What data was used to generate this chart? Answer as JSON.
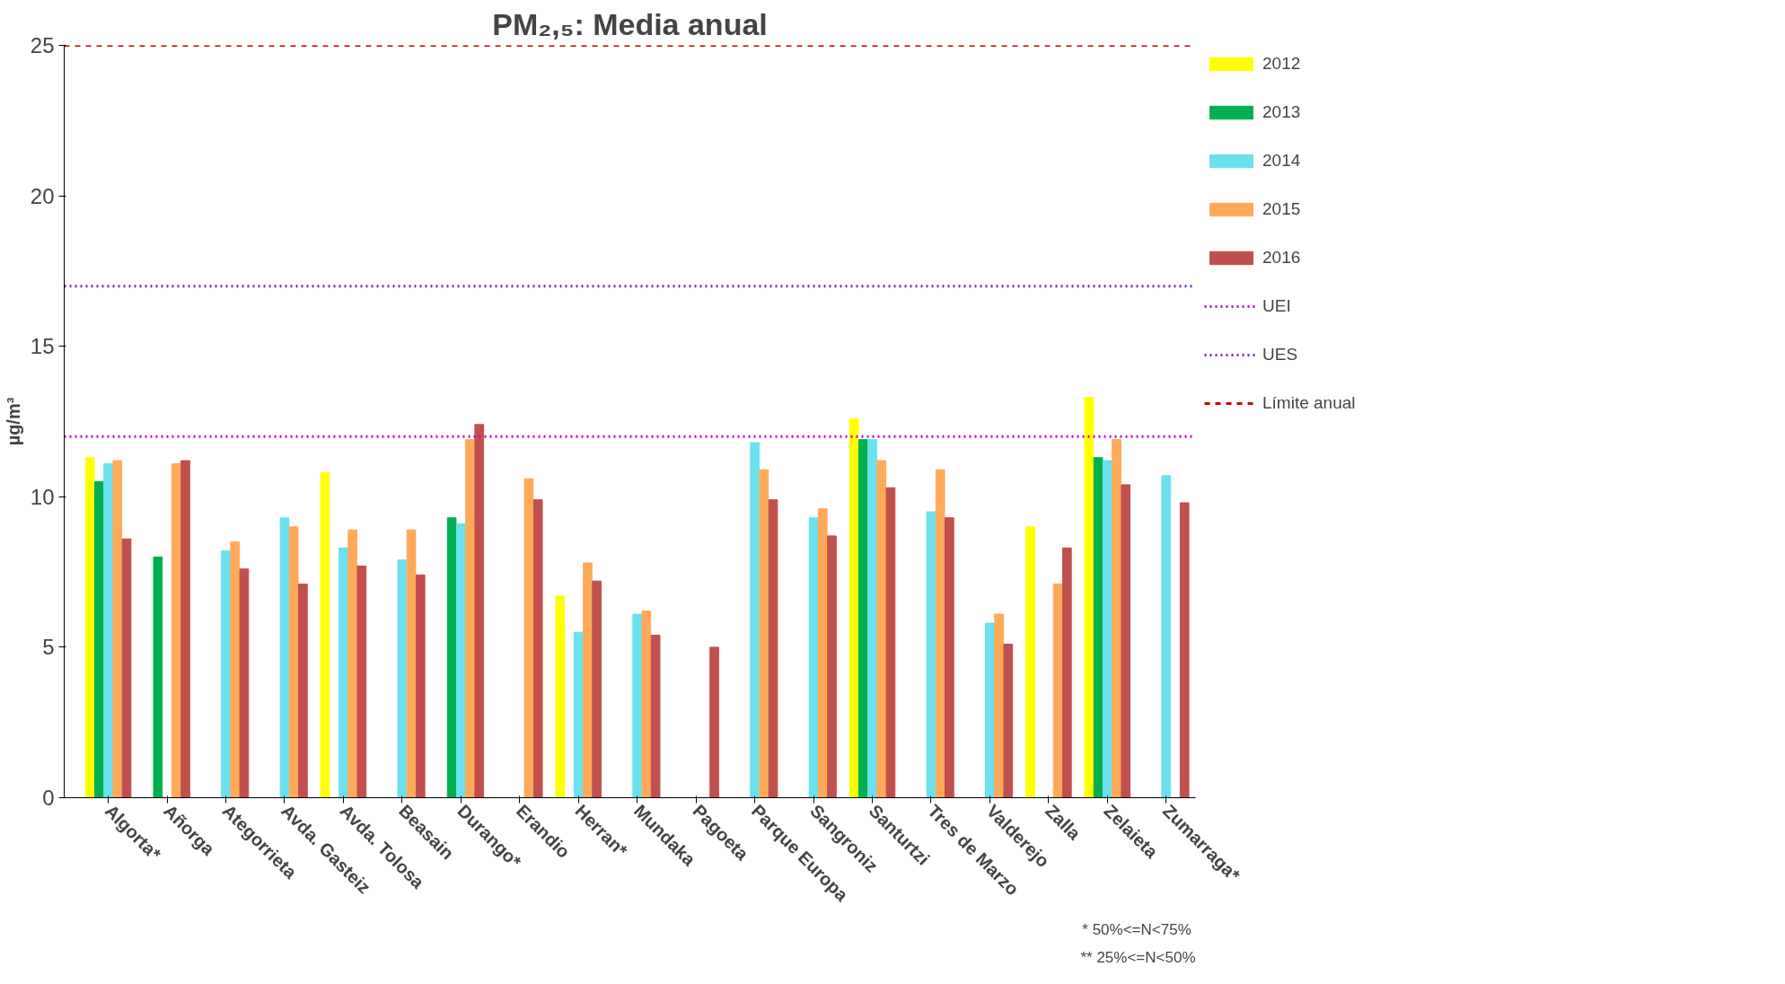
{
  "chart_data": {
    "type": "bar",
    "title": "PM₂,₅: Media anual",
    "ylabel": "µg/m³",
    "categories": [
      "Algorta*",
      "Añorga",
      "Ategorrieta",
      "Avda. Gasteiz",
      "Avda. Tolosa",
      "Beasain",
      "Durango*",
      "Erandio",
      "Herran*",
      "Mundaka",
      "Pagoeta",
      "Parque Europa",
      "Sangroniz",
      "Santurtzi",
      "Tres de Marzo",
      "Valderejo",
      "Zalla",
      "Zelaieta",
      "Zumarraga*"
    ],
    "series": [
      {
        "name": "2012",
        "color": "#ffff00",
        "values": [
          11.3,
          null,
          null,
          null,
          10.8,
          null,
          null,
          null,
          6.7,
          null,
          null,
          null,
          null,
          12.6,
          null,
          null,
          9.0,
          13.3,
          null
        ]
      },
      {
        "name": "2013",
        "color": "#00b050",
        "values": [
          10.5,
          8.0,
          null,
          null,
          null,
          null,
          9.3,
          null,
          null,
          null,
          null,
          null,
          null,
          11.9,
          null,
          null,
          null,
          11.3,
          null
        ]
      },
      {
        "name": "2014",
        "color": "#6ae1ec",
        "values": [
          11.1,
          null,
          8.2,
          9.3,
          8.3,
          7.9,
          9.1,
          null,
          5.5,
          6.1,
          null,
          11.8,
          9.3,
          11.9,
          9.5,
          5.8,
          null,
          11.2,
          10.7
        ]
      },
      {
        "name": "2015",
        "color": "#ffaa58",
        "values": [
          11.2,
          11.1,
          8.5,
          9.0,
          8.9,
          8.9,
          11.9,
          10.6,
          7.8,
          6.2,
          null,
          10.9,
          9.6,
          11.2,
          10.9,
          6.1,
          7.1,
          11.9,
          null
        ]
      },
      {
        "name": "2016",
        "color": "#c0504d",
        "values": [
          8.6,
          11.2,
          7.6,
          7.1,
          7.7,
          7.4,
          12.4,
          9.9,
          7.2,
          5.4,
          5.0,
          9.9,
          8.7,
          10.3,
          9.3,
          5.1,
          8.3,
          10.4,
          9.8
        ]
      }
    ],
    "ref_lines": [
      {
        "axis": "y",
        "value": 12,
        "label": "UEI",
        "color": "#cc00cc",
        "line_style": "dotted"
      },
      {
        "axis": "y",
        "value": 17,
        "label": "UES",
        "color": "#7030a0",
        "line_style": "dotted"
      },
      {
        "axis": "y",
        "value": 25,
        "label": "Límite anual",
        "color": "#cc0000",
        "line_style": "dashed"
      }
    ],
    "ylim": [
      0,
      25
    ],
    "yticks": [
      0,
      5,
      10,
      15,
      20,
      25
    ],
    "grid": false,
    "legend": "right",
    "annotations": [
      "*  50%<=N<75%",
      "** 25%<=N<50%"
    ]
  }
}
